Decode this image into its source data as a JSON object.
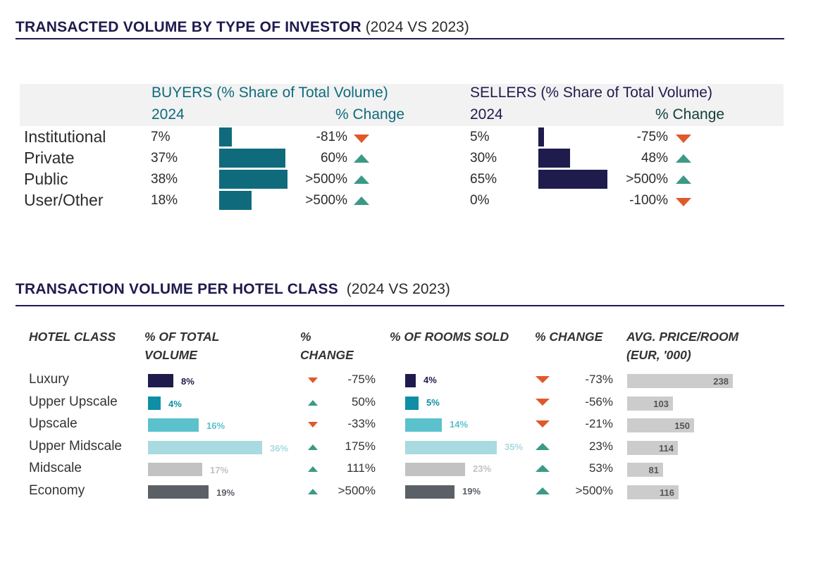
{
  "investor_section": {
    "title": "TRANSACTED VOLUME BY TYPE OF INVESTOR",
    "subtitle": "(2024 VS 2023)",
    "buyers_header": "BUYERS",
    "buyers_header_sub": "(% Share of Total Volume)",
    "sellers_header": "SELLERS",
    "sellers_header_sub": "(% Share of Total Volume)",
    "year_label": "2024",
    "change_label": "% Change"
  },
  "hotel_section": {
    "title": "TRANSACTION VOLUME PER HOTEL CLASS",
    "subtitle": "(2024 VS 2023)",
    "col_class": "HOTEL CLASS",
    "col_volume_l1": "% OF TOTAL",
    "col_volume_l2": "VOLUME",
    "col_change_l1": "%",
    "col_change_l2": "CHANGE",
    "col_rooms": "% OF ROOMS SOLD",
    "col_rooms_change": "% CHANGE",
    "col_price_l1": "AVG. PRICE/ROOM",
    "col_price_l2": "(EUR, '000)"
  },
  "colors": {
    "buyers_bar": "#0f6b7c",
    "sellers_bar": "#1f1b4d",
    "up": "#3a9a86",
    "down": "#e0592b",
    "price_bar": "#cccccc"
  },
  "chart_data": [
    {
      "type": "table",
      "title": "TRANSACTED VOLUME BY TYPE OF INVESTOR (2024 VS 2023)",
      "categories": [
        "Institutional",
        "Private",
        "Public",
        "User/Other"
      ],
      "series": [
        {
          "name": "BUYERS",
          "values": [
            7,
            37,
            38,
            18
          ],
          "labels": [
            "7%",
            "37%",
            "38%",
            "18%"
          ],
          "change": [
            "-81%",
            "60%",
            ">500%",
            ">500%"
          ],
          "direction": [
            "down",
            "up",
            "up",
            "up"
          ]
        },
        {
          "name": "SELLERS",
          "values": [
            5,
            30,
            65,
            0
          ],
          "labels": [
            "5%",
            "30%",
            "65%",
            "0%"
          ],
          "change": [
            "-75%",
            "48%",
            ">500%",
            "-100%"
          ],
          "direction": [
            "down",
            "up",
            "up",
            "down"
          ]
        }
      ]
    },
    {
      "type": "table",
      "title": "TRANSACTION VOLUME PER HOTEL CLASS (2024 VS 2023)",
      "categories": [
        "Luxury",
        "Upper Upscale",
        "Upscale",
        "Upper Midscale",
        "Midscale",
        "Economy"
      ],
      "bar_colors": [
        "#1f1b4d",
        "#0f8ea6",
        "#5bc1cc",
        "#a8dadf",
        "#c2c2c2",
        "#5b6066"
      ],
      "volume": {
        "values": [
          8,
          4,
          16,
          36,
          17,
          19
        ],
        "labels": [
          "8%",
          "4%",
          "16%",
          "36%",
          "17%",
          "19%"
        ],
        "change": [
          "-75%",
          "50%",
          "-33%",
          "175%",
          "111%",
          ">500%"
        ],
        "direction": [
          "down",
          "up",
          "down",
          "up",
          "up",
          "up"
        ]
      },
      "rooms": {
        "values": [
          4,
          5,
          14,
          35,
          23,
          19
        ],
        "labels": [
          "4%",
          "5%",
          "14%",
          "35%",
          "23%",
          "19%"
        ],
        "change": [
          "-73%",
          "-56%",
          "-21%",
          "23%",
          "53%",
          ">500%"
        ],
        "direction": [
          "down",
          "down",
          "down",
          "up",
          "up",
          "up"
        ]
      },
      "avg_price": {
        "values": [
          238,
          103,
          150,
          114,
          81,
          116
        ],
        "labels": [
          "238",
          "103",
          "150",
          "114",
          "81",
          "116"
        ]
      }
    }
  ]
}
